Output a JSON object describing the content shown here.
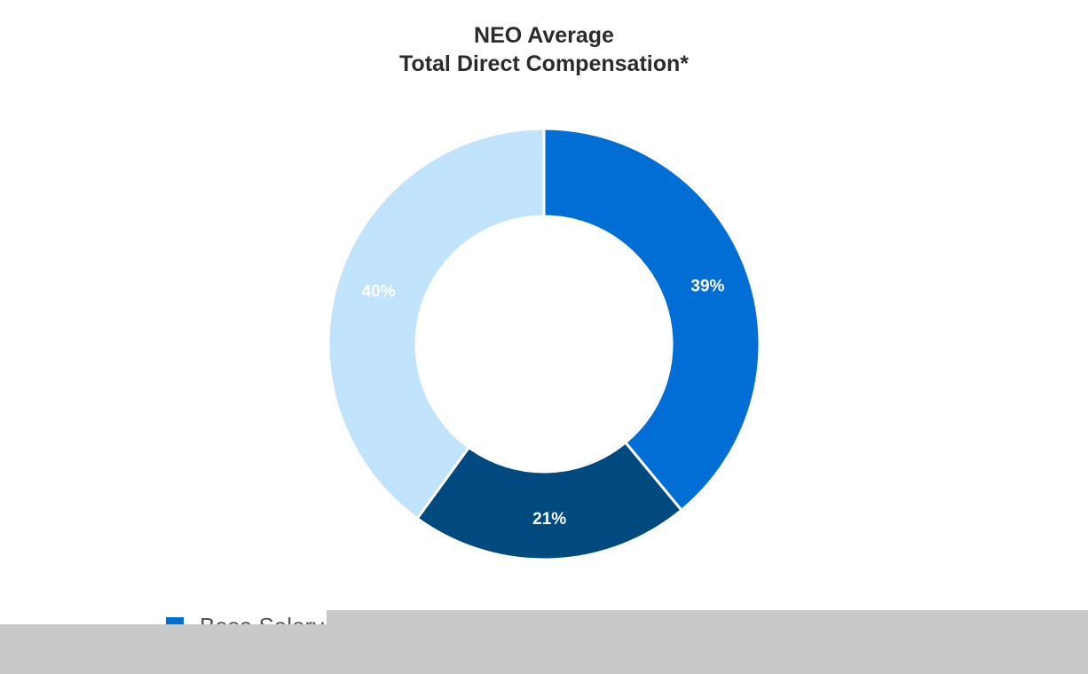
{
  "chart_data": {
    "type": "pie",
    "variant": "donut",
    "title_lines": [
      "NEO Average",
      "Total Direct Compensation*"
    ],
    "slices": [
      {
        "value": 39,
        "label": "39%",
        "color": "#006ed4"
      },
      {
        "value": 21,
        "label": "21%",
        "color": "#004a80"
      },
      {
        "value": 40,
        "label": "40%",
        "color": "#c2e3fc"
      }
    ],
    "start_angle_deg": 0,
    "direction": "clockwise",
    "legend": {
      "placement": "bottom-left",
      "visible_entries": [
        {
          "label": "Base Salary",
          "color": "#006ed4"
        }
      ]
    }
  },
  "occluder_color": "#c9c9c9"
}
